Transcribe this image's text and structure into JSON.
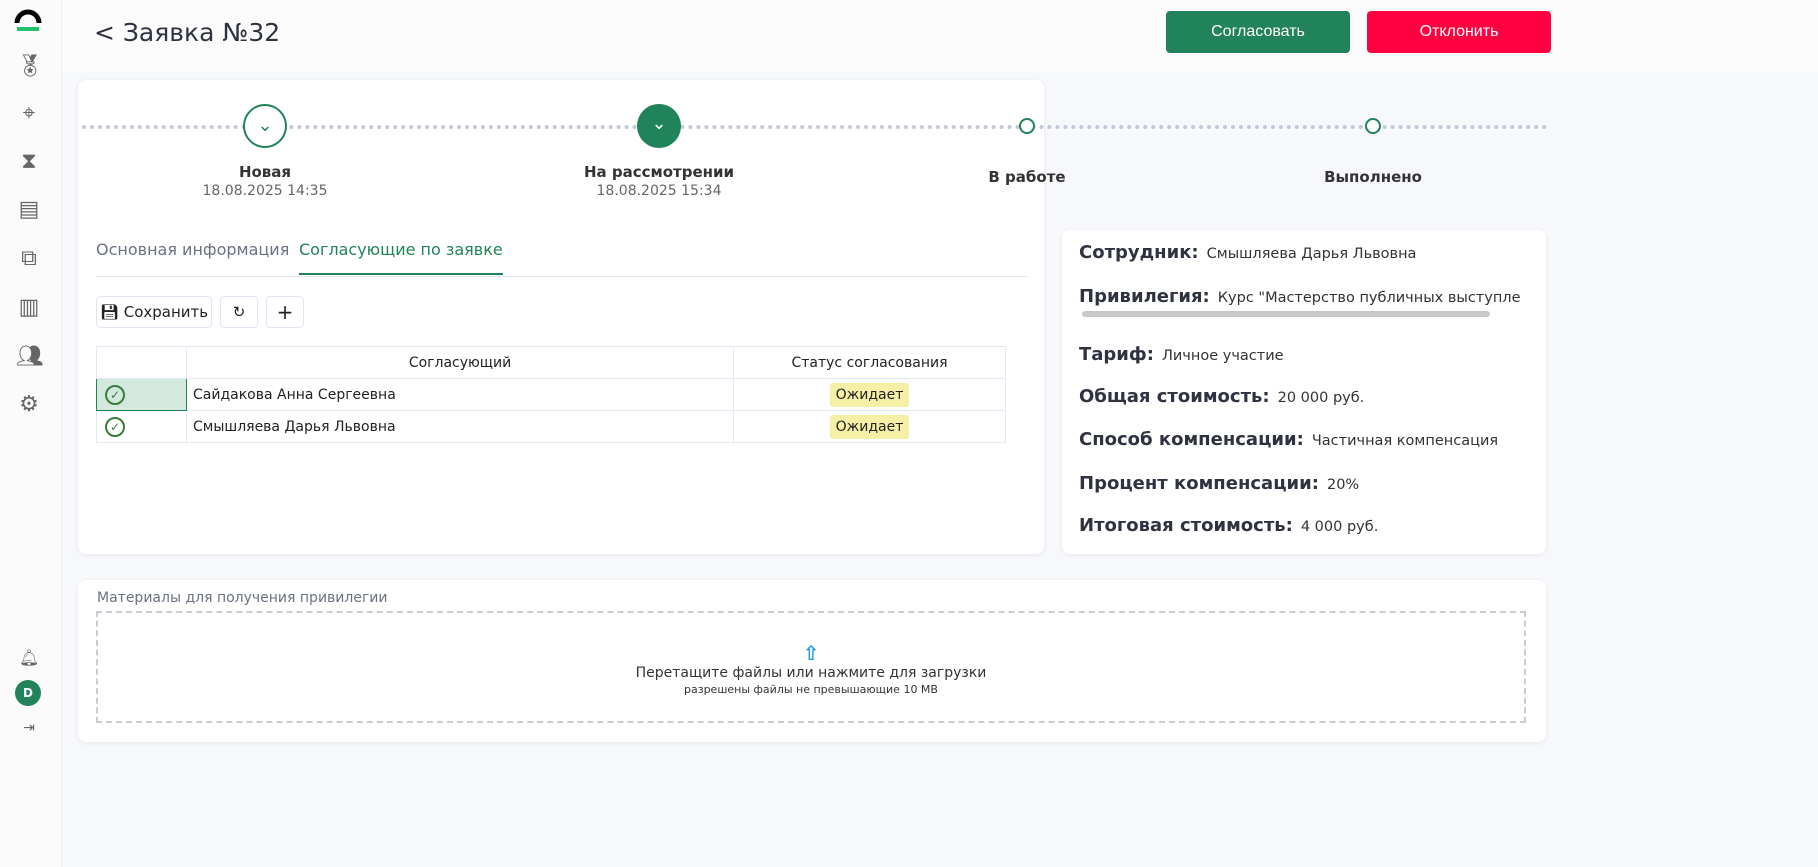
{
  "sidebar": {
    "icons": [
      "logo",
      "award-icon",
      "target-icon",
      "hourglass-icon",
      "receipt-icon",
      "briefcase-icon",
      "chart-icon",
      "users-icon",
      "gear-icon",
      "bell-icon",
      "avatar",
      "collapse-icon"
    ],
    "avatar": "D"
  },
  "header": {
    "title": "< Заявка №32",
    "approve": "Согласовать",
    "reject": "Отклонить"
  },
  "steps": [
    {
      "label": "Новая",
      "date": "18.08.2025 14:35",
      "state": "done"
    },
    {
      "label": "На рассмотрении",
      "date": "18.08.2025 15:34",
      "state": "current"
    },
    {
      "label": "В работе",
      "state": "pending"
    },
    {
      "label": "Выполнено",
      "state": "pending"
    }
  ],
  "tabs": [
    "Основная информация",
    "Согласующие по заявке"
  ],
  "toolbar": {
    "save": "Сохранить"
  },
  "table": {
    "headers": [
      "Согласующий",
      "Статус согласования"
    ],
    "rows": [
      {
        "name": "Сайдакова Анна Сергеевна",
        "status": "Ожидает"
      },
      {
        "name": "Смышляева Дарья Львовна",
        "status": "Ожидает"
      }
    ]
  },
  "info": [
    {
      "k": "Сотрудник:",
      "v": "Смышляева Дарья Львовна"
    },
    {
      "k": "Привилегия:",
      "v": "Курс \"Мастерство публичных выступле"
    },
    {
      "k": "Тариф:",
      "v": "Личное участие"
    },
    {
      "k": "Общая стоимость:",
      "v": "20 000 руб."
    },
    {
      "k": "Способ компенсации:",
      "v": "Частичная компенсация"
    },
    {
      "k": "Процент компенсации:",
      "v": "20%"
    },
    {
      "k": "Итоговая стоимость:",
      "v": "4 000 руб."
    }
  ],
  "materials": {
    "label": "Материалы для получения привилегии",
    "drop": "Перетащите файлы или нажмите для загрузки",
    "hint": "разрешены файлы не превышающие 10 MB"
  },
  "colors": {
    "accent": "#20835a",
    "reject": "#ff0040",
    "badge": "#f5f0a6"
  }
}
